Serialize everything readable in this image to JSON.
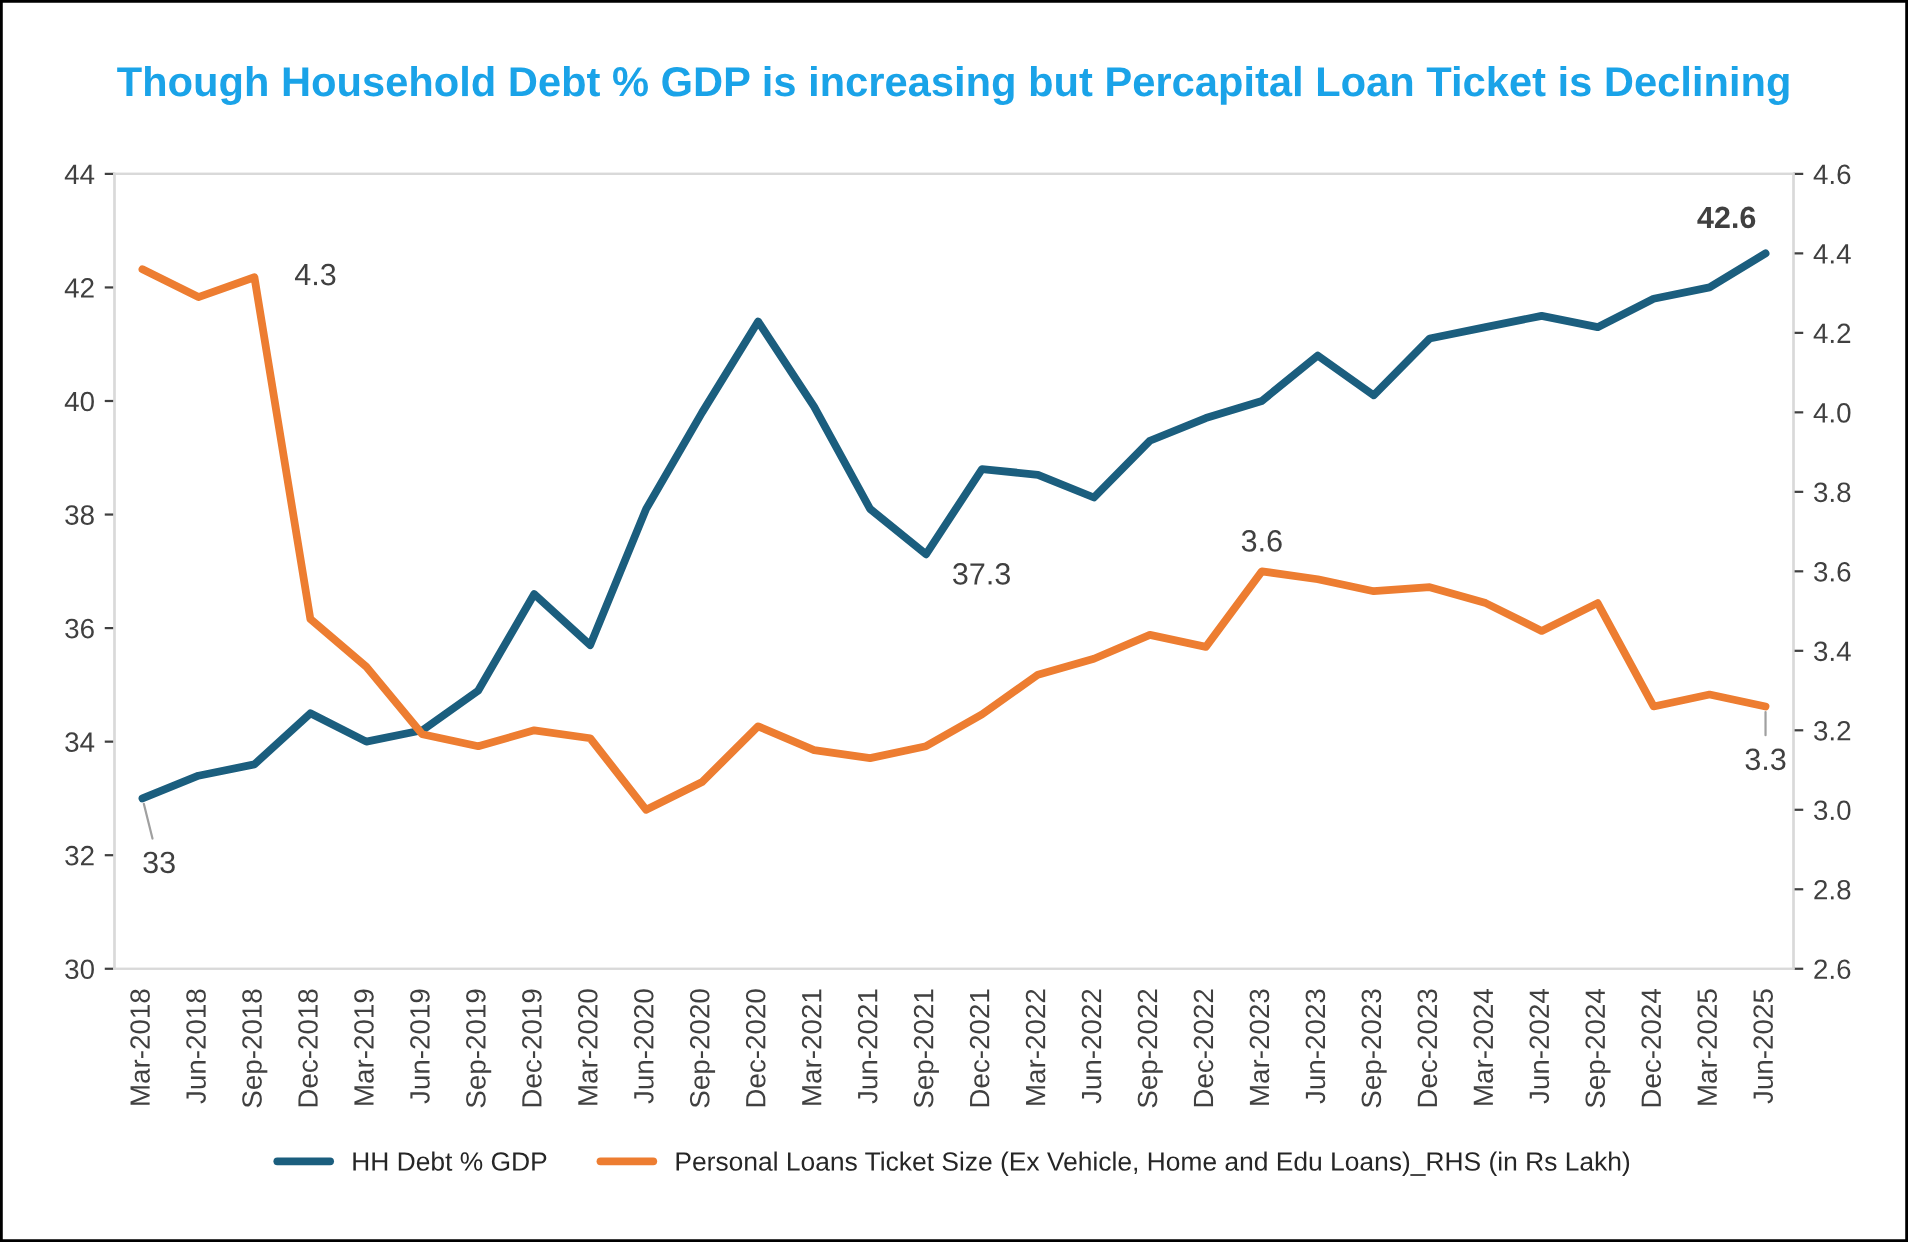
{
  "chart_data": {
    "type": "line",
    "title": "Though Household Debt % GDP is increasing but Percapital Loan Ticket is Declining",
    "categories": [
      "Mar-2018",
      "Jun-2018",
      "Sep-2018",
      "Dec-2018",
      "Mar-2019",
      "Jun-2019",
      "Sep-2019",
      "Dec-2019",
      "Mar-2020",
      "Jun-2020",
      "Sep-2020",
      "Dec-2020",
      "Mar-2021",
      "Jun-2021",
      "Sep-2021",
      "Dec-2021",
      "Mar-2022",
      "Jun-2022",
      "Sep-2022",
      "Dec-2022",
      "Mar-2023",
      "Jun-2023",
      "Sep-2023",
      "Dec-2023",
      "Mar-2024",
      "Jun-2024",
      "Sep-2024",
      "Dec-2024",
      "Mar-2025",
      "Jun-2025"
    ],
    "series": [
      {
        "name": "HH Debt % GDP",
        "color": "#1b5e7e",
        "values": [
          33,
          33.4,
          33.6,
          34.5,
          34.0,
          34.2,
          34.9,
          36.6,
          35.7,
          38.1,
          39.8,
          41.4,
          39.9,
          38.1,
          37.3,
          38.8,
          38.7,
          38.3,
          39.3,
          39.7,
          40.0,
          40.8,
          40.1,
          41.1,
          41.3,
          41.5,
          41.3,
          41.8,
          42.0,
          42.6
        ],
        "value_labels": [
          "33",
          null,
          null,
          null,
          null,
          null,
          null,
          null,
          null,
          null,
          null,
          null,
          null,
          null,
          "37.3",
          null,
          null,
          null,
          null,
          null,
          null,
          null,
          null,
          null,
          null,
          null,
          null,
          null,
          null,
          "42.6"
        ]
      },
      {
        "name": "Personal Loans Ticket Size (Ex Vehicle, Home and Edu Loans)_RHS (in Rs Lakh)",
        "color": "#ed7d31",
        "axis": "y2",
        "values": [
          4.36,
          4.29,
          4.34,
          3.48,
          3.36,
          3.19,
          3.16,
          3.2,
          3.18,
          3.0,
          3.07,
          3.21,
          3.15,
          3.13,
          3.16,
          3.24,
          3.34,
          3.38,
          3.44,
          3.41,
          3.6,
          3.58,
          3.55,
          3.56,
          3.52,
          3.45,
          3.52,
          3.26,
          3.29,
          3.26
        ],
        "value_labels": [
          null,
          null,
          "4.3",
          null,
          null,
          null,
          null,
          null,
          null,
          null,
          null,
          null,
          null,
          null,
          null,
          null,
          null,
          null,
          null,
          null,
          "3.6",
          null,
          null,
          null,
          null,
          null,
          null,
          null,
          null,
          "3.3"
        ]
      }
    ],
    "ylim": [
      30,
      44
    ],
    "yticks": [
      30,
      32,
      34,
      36,
      38,
      40,
      42,
      44
    ],
    "y2lim": [
      2.6,
      4.6
    ],
    "y2ticks": [
      {
        "value": 2.6,
        "label": "2.6"
      },
      {
        "value": 2.8,
        "label": "2.8"
      },
      {
        "value": 3.0,
        "label": "3.0"
      },
      {
        "value": 3.2,
        "label": "3.2"
      },
      {
        "value": 3.4,
        "label": "3.4"
      },
      {
        "value": 3.6,
        "label": "3.6"
      },
      {
        "value": 3.8,
        "label": "3.8"
      },
      {
        "value": 4.0,
        "label": "4.0"
      },
      {
        "value": 4.2,
        "label": "4.2"
      },
      {
        "value": 4.4,
        "label": "4.4"
      },
      {
        "value": 4.6,
        "label": "4.6"
      }
    ],
    "grid": false,
    "legend": "bottom",
    "marker": "none",
    "line_style": "solid"
  }
}
